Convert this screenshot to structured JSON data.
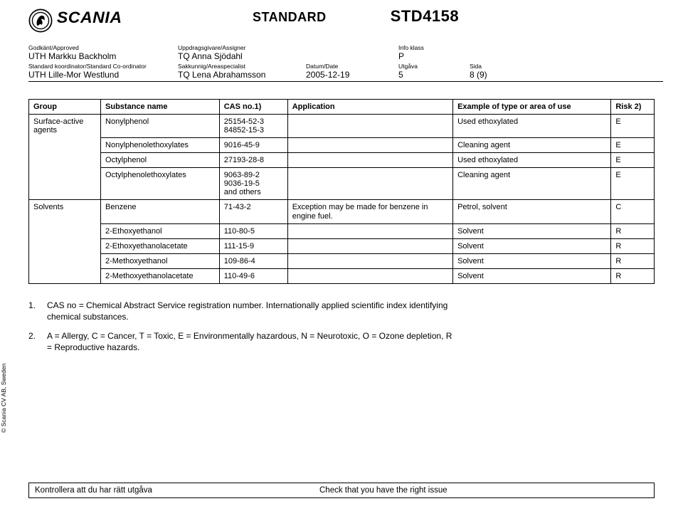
{
  "brand": {
    "word": "SCANIA"
  },
  "title": {
    "standard_label": "STANDARD",
    "standard_code": "STD4158"
  },
  "meta": {
    "approved_label": "Godkänt/Approved",
    "approved_value": "UTH Markku Backholm",
    "assigner_label": "Uppdragsgivare/Assigner",
    "assigner_value": "TQ Anna Sjödahl",
    "infoklass_label": "Info klass",
    "infoklass_value": "P",
    "coord_label": "Standard koordinator/Standard Co-ordinator",
    "coord_value": "UTH Lille-Mor Westlund",
    "spec_label": "Sakkunnig/Areaspecialist",
    "spec_value": "TQ Lena Abrahamsson",
    "date_label": "Datum/Date",
    "date_value": "2005-12-19",
    "issue_label": "Utgåva",
    "issue_value": "5",
    "page_label": "Sida",
    "page_value": "8 (9)"
  },
  "table": {
    "headers": {
      "group": "Group",
      "substance": "Substance name",
      "cas": "CAS no.1)",
      "application": "Application",
      "example": "Example of type or area of use",
      "risk": "Risk 2)"
    },
    "rows": [
      {
        "group": "Surface-active agents",
        "substance": "Nonylphenol",
        "cas": "25154-52-3\n84852-15-3",
        "application": "",
        "example": "Used ethoxylated",
        "risk": "E"
      },
      {
        "group": "",
        "substance": "Nonylphenolethoxylates",
        "cas": "9016-45-9",
        "application": "",
        "example": "Cleaning agent",
        "risk": "E"
      },
      {
        "group": "",
        "substance": "Octylphenol",
        "cas": "27193-28-8",
        "application": "",
        "example": "Used ethoxylated",
        "risk": "E"
      },
      {
        "group": "",
        "substance": "Octylphenolethoxylates",
        "cas": "9063-89-2\n9036-19-5\nand others",
        "application": "",
        "example": "Cleaning agent",
        "risk": "E"
      },
      {
        "group": "Solvents",
        "substance": "Benzene",
        "cas": "71-43-2",
        "application": "Exception may be made for benzene in engine fuel.",
        "example": "Petrol, solvent",
        "risk": "C"
      },
      {
        "group": "",
        "substance": "2-Ethoxyethanol",
        "cas": "110-80-5",
        "application": "",
        "example": "Solvent",
        "risk": "R"
      },
      {
        "group": "",
        "substance": "2-Ethoxyethanolacetate",
        "cas": "111-15-9",
        "application": "",
        "example": "Solvent",
        "risk": "R"
      },
      {
        "group": "",
        "substance": "2-Methoxyethanol",
        "cas": "109-86-4",
        "application": "",
        "example": "Solvent",
        "risk": "R"
      },
      {
        "group": "",
        "substance": "2-Methoxyethanolacetate",
        "cas": "110-49-6",
        "application": "",
        "example": "Solvent",
        "risk": "R"
      }
    ],
    "rowspan_group1": 4,
    "rowspan_group2": 5
  },
  "footnotes": {
    "n1": "1.",
    "t1": "CAS no = Chemical Abstract Service registration number. Internationally applied scientific index identifying chemical substances.",
    "n2": "2.",
    "t2": "A = Allergy, C = Cancer, T = Toxic, E = Environmentally hazardous, N = Neurotoxic, O = Ozone depletion, R = Reproductive hazards."
  },
  "copyright_side": "© Scania CV AB, Sweden",
  "footer": {
    "left": "Kontrollera att du har rätt utgåva",
    "right": "Check that you have the right issue"
  },
  "colors": {
    "text": "#000000",
    "border": "#000000",
    "background": "#ffffff"
  }
}
